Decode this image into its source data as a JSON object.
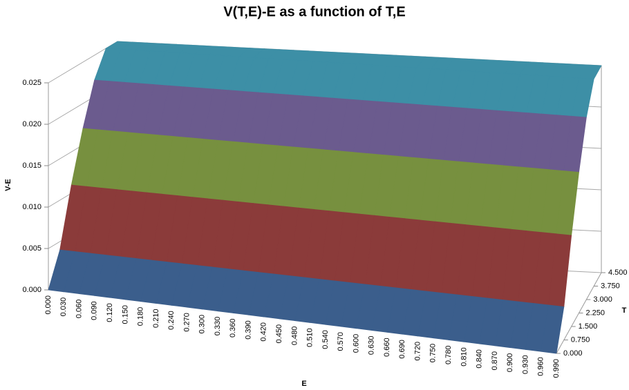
{
  "chart_data": {
    "type": "surface",
    "title": "V(T,E)-E as a function of T,E",
    "x_label": "E",
    "y_label": "T",
    "z_label": "V-E",
    "categories": [
      "0.000",
      "0.030",
      "0.060",
      "0.090",
      "0.120",
      "0.150",
      "0.180",
      "0.210",
      "0.240",
      "0.270",
      "0.300",
      "0.330",
      "0.360",
      "0.390",
      "0.420",
      "0.450",
      "0.480",
      "0.510",
      "0.540",
      "0.570",
      "0.600",
      "0.630",
      "0.660",
      "0.690",
      "0.720",
      "0.750",
      "0.780",
      "0.810",
      "0.840",
      "0.870",
      "0.900",
      "0.930",
      "0.960",
      "0.990"
    ],
    "series": [
      {
        "name": "0.000",
        "values": [
          0,
          0,
          0,
          0,
          0,
          0,
          0,
          0,
          0,
          0,
          0,
          0,
          0,
          0,
          0,
          0,
          0,
          0,
          0,
          0,
          0,
          0,
          0,
          0,
          0,
          0,
          0,
          0,
          0,
          0,
          0,
          0,
          0,
          0
        ]
      },
      {
        "name": "0.750",
        "values": [
          0.004,
          0.004,
          0.004,
          0.004,
          0.004,
          0.004,
          0.004,
          0.004,
          0.004,
          0.004,
          0.004,
          0.004,
          0.004,
          0.004,
          0.004,
          0.004,
          0.004,
          0.004,
          0.004,
          0.004,
          0.004,
          0.004,
          0.004,
          0.004,
          0.004,
          0.004,
          0.004,
          0.004,
          0.004,
          0.004,
          0.004,
          0.004,
          0.004,
          0.004
        ]
      },
      {
        "name": "1.500",
        "values": [
          0.011,
          0.011,
          0.011,
          0.011,
          0.011,
          0.011,
          0.011,
          0.011,
          0.011,
          0.011,
          0.011,
          0.011,
          0.011,
          0.011,
          0.011,
          0.011,
          0.011,
          0.011,
          0.011,
          0.011,
          0.011,
          0.011,
          0.011,
          0.011,
          0.011,
          0.011,
          0.011,
          0.011,
          0.011,
          0.011,
          0.011,
          0.011,
          0.011,
          0.011
        ]
      },
      {
        "name": "2.250",
        "values": [
          0.017,
          0.017,
          0.017,
          0.017,
          0.017,
          0.017,
          0.017,
          0.017,
          0.017,
          0.017,
          0.017,
          0.017,
          0.017,
          0.017,
          0.017,
          0.017,
          0.017,
          0.017,
          0.017,
          0.017,
          0.017,
          0.017,
          0.017,
          0.017,
          0.017,
          0.017,
          0.017,
          0.017,
          0.017,
          0.017,
          0.017,
          0.017,
          0.017,
          0.017
        ]
      },
      {
        "name": "3.000",
        "values": [
          0.022,
          0.022,
          0.022,
          0.022,
          0.022,
          0.022,
          0.022,
          0.022,
          0.022,
          0.022,
          0.022,
          0.022,
          0.022,
          0.022,
          0.022,
          0.022,
          0.022,
          0.022,
          0.022,
          0.022,
          0.022,
          0.022,
          0.022,
          0.022,
          0.022,
          0.022,
          0.022,
          0.022,
          0.022,
          0.022,
          0.022,
          0.022,
          0.022,
          0.022
        ]
      },
      {
        "name": "3.750",
        "values": [
          0.025,
          0.025,
          0.025,
          0.025,
          0.025,
          0.025,
          0.025,
          0.025,
          0.025,
          0.025,
          0.025,
          0.025,
          0.025,
          0.025,
          0.025,
          0.025,
          0.025,
          0.025,
          0.025,
          0.025,
          0.025,
          0.025,
          0.025,
          0.025,
          0.025,
          0.025,
          0.025,
          0.025,
          0.025,
          0.025,
          0.025,
          0.025,
          0.025,
          0.025
        ]
      },
      {
        "name": "4.500",
        "values": [
          0.025,
          0.025,
          0.025,
          0.025,
          0.025,
          0.025,
          0.025,
          0.025,
          0.025,
          0.025,
          0.025,
          0.025,
          0.025,
          0.025,
          0.025,
          0.025,
          0.025,
          0.025,
          0.025,
          0.025,
          0.025,
          0.025,
          0.025,
          0.025,
          0.025,
          0.025,
          0.025,
          0.025,
          0.025,
          0.025,
          0.025,
          0.025,
          0.025,
          0.025
        ]
      }
    ],
    "zlim": [
      0,
      0.025
    ],
    "zticks": [
      {
        "value": 0,
        "label": "0.000"
      },
      {
        "value": 0.005,
        "label": "0.005"
      },
      {
        "value": 0.01,
        "label": "0.010"
      },
      {
        "value": 0.015,
        "label": "0.015"
      },
      {
        "value": 0.02,
        "label": "0.020"
      },
      {
        "value": 0.025,
        "label": "0.025"
      }
    ],
    "band_colors": [
      "#3b5e8c",
      "#8b3b3a",
      "#77903f",
      "#6b5b8e",
      "#3d8fa6"
    ],
    "grid": true
  }
}
